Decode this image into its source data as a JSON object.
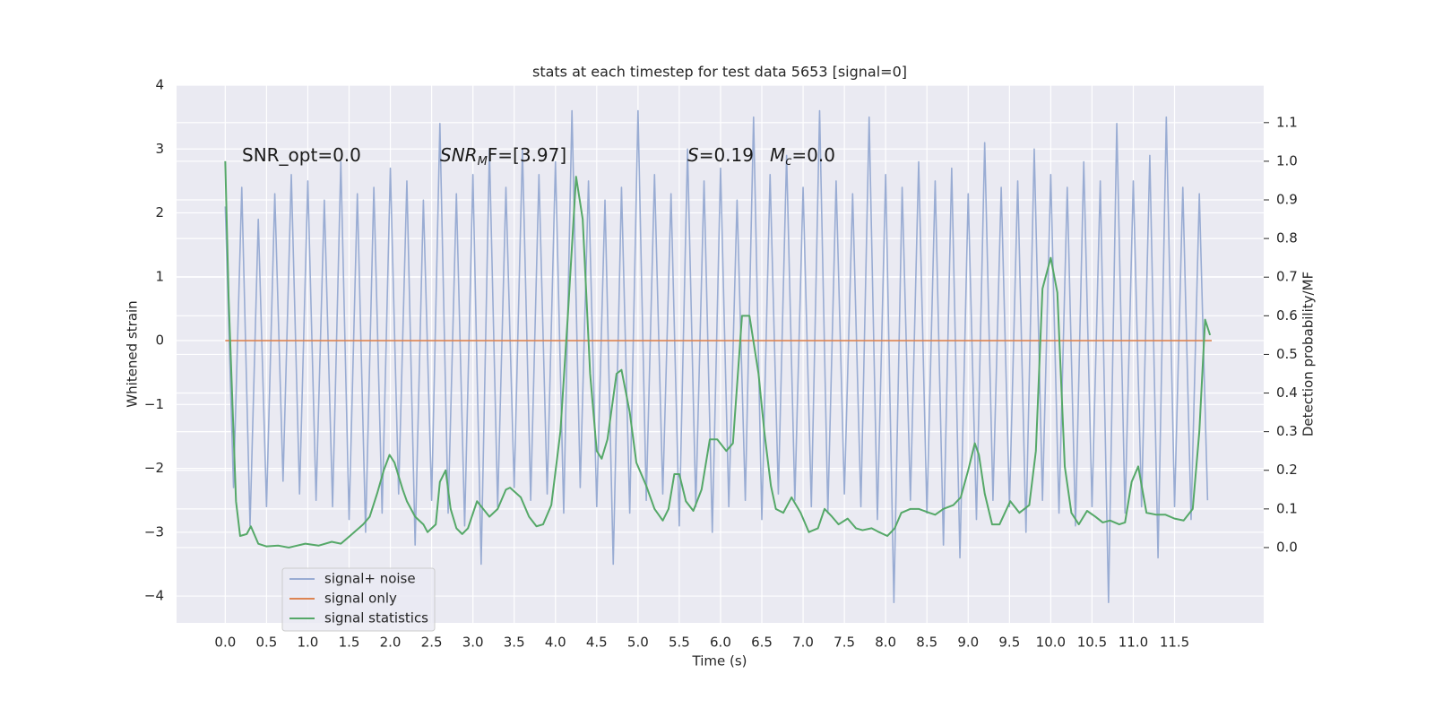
{
  "chart_data": {
    "type": "line",
    "title": "stats at each timestep for test data 5653 [signal=0]",
    "xlabel": "Time (s)",
    "ylabel": "Whitened strain",
    "y2label": "Detection probability/MF",
    "xlim": [
      -0.59,
      12.58
    ],
    "ylim": [
      -4.42,
      4
    ],
    "y2lim": [
      -0.195,
      1.197
    ],
    "xticks": [
      {
        "value": 0,
        "label": "0.0"
      },
      {
        "value": 0.5,
        "label": "0.5"
      },
      {
        "value": 1,
        "label": "1.0"
      },
      {
        "value": 1.5,
        "label": "1.5"
      },
      {
        "value": 2,
        "label": "2.0"
      },
      {
        "value": 2.5,
        "label": "2.5"
      },
      {
        "value": 3,
        "label": "3.0"
      },
      {
        "value": 3.5,
        "label": "3.5"
      },
      {
        "value": 4,
        "label": "4.0"
      },
      {
        "value": 4.5,
        "label": "4.5"
      },
      {
        "value": 5,
        "label": "5.0"
      },
      {
        "value": 5.5,
        "label": "5.5"
      },
      {
        "value": 6,
        "label": "6.0"
      },
      {
        "value": 6.5,
        "label": "6.5"
      },
      {
        "value": 7,
        "label": "7.0"
      },
      {
        "value": 7.5,
        "label": "7.5"
      },
      {
        "value": 8,
        "label": "8.0"
      },
      {
        "value": 8.5,
        "label": "8.5"
      },
      {
        "value": 9,
        "label": "9.0"
      },
      {
        "value": 9.5,
        "label": "9.5"
      },
      {
        "value": 10,
        "label": "10.0"
      },
      {
        "value": 10.5,
        "label": "10.5"
      },
      {
        "value": 11,
        "label": "11.0"
      },
      {
        "value": 11.5,
        "label": "11.5"
      }
    ],
    "yticks": [
      {
        "value": -4,
        "label": "−4"
      },
      {
        "value": -3,
        "label": "−3"
      },
      {
        "value": -2,
        "label": "−2"
      },
      {
        "value": -1,
        "label": "−1"
      },
      0,
      1,
      2,
      3,
      4
    ],
    "y2ticks": [
      {
        "value": 0,
        "label": "0.0"
      },
      {
        "value": 0.1,
        "label": "0.1"
      },
      {
        "value": 0.2,
        "label": "0.2"
      },
      {
        "value": 0.3,
        "label": "0.3"
      },
      {
        "value": 0.4,
        "label": "0.4"
      },
      {
        "value": 0.5,
        "label": "0.5"
      },
      {
        "value": 0.6,
        "label": "0.6"
      },
      {
        "value": 0.7,
        "label": "0.7"
      },
      {
        "value": 0.8,
        "label": "0.8"
      },
      {
        "value": 0.9,
        "label": "0.9"
      },
      {
        "value": 1,
        "label": "1.0"
      },
      {
        "value": 1.1,
        "label": "1.1"
      }
    ],
    "grid": true,
    "legend": "lower left",
    "annotations": [
      {
        "main": "SNR_opt=0.0"
      },
      {
        "main": "SNR",
        "sub": "M",
        "rest": "F=[3.97]"
      },
      {
        "main": "S",
        "rest": "=0.19"
      },
      {
        "main": "M",
        "sub": "c",
        "rest": "=0.0"
      }
    ],
    "series": [
      {
        "name": "signal+ noise",
        "color": "#99acd3",
        "x": [
          0.0,
          0.1,
          0.2,
          0.3,
          0.4,
          0.5,
          0.6,
          0.7,
          0.8,
          0.9,
          1.0,
          1.1,
          1.2,
          1.3,
          1.4,
          1.5,
          1.6,
          1.7,
          1.8,
          1.9,
          2.0,
          2.1,
          2.2,
          2.3,
          2.4,
          2.5,
          2.6,
          2.7,
          2.8,
          2.9,
          3.0,
          3.1,
          3.2,
          3.3,
          3.4,
          3.5,
          3.6,
          3.7,
          3.8,
          3.9,
          4.0,
          4.1,
          4.2,
          4.3,
          4.4,
          4.5,
          4.6,
          4.7,
          4.8,
          4.9,
          5.0,
          5.1,
          5.2,
          5.3,
          5.4,
          5.5,
          5.6,
          5.7,
          5.8,
          5.9,
          6.0,
          6.1,
          6.2,
          6.3,
          6.4,
          6.5,
          6.6,
          6.7,
          6.8,
          6.9,
          7.0,
          7.1,
          7.2,
          7.3,
          7.4,
          7.5,
          7.6,
          7.7,
          7.8,
          7.9,
          8.0,
          8.1,
          8.2,
          8.3,
          8.4,
          8.5,
          8.6,
          8.7,
          8.8,
          8.9,
          9.0,
          9.1,
          9.2,
          9.3,
          9.4,
          9.5,
          9.6,
          9.7,
          9.8,
          9.9,
          10.0,
          10.1,
          10.2,
          10.3,
          10.4,
          10.5,
          10.6,
          10.7,
          10.8,
          10.9,
          11.0,
          11.1,
          11.2,
          11.3,
          11.4,
          11.5,
          11.6,
          11.7,
          11.8,
          11.9
        ],
        "values": [
          2.1,
          -2.3,
          2.4,
          -2.9,
          1.9,
          -2.6,
          2.3,
          -2.2,
          2.6,
          -2.4,
          2.5,
          -2.5,
          2.2,
          -2.6,
          2.8,
          -2.8,
          2.3,
          -3.0,
          2.4,
          -2.7,
          2.7,
          -2.4,
          2.5,
          -3.2,
          2.2,
          -2.5,
          3.4,
          -2.7,
          2.3,
          -2.9,
          2.6,
          -3.5,
          3.0,
          -2.6,
          2.4,
          -2.3,
          3.0,
          -2.5,
          2.6,
          -2.4,
          2.8,
          -2.7,
          3.6,
          -2.3,
          2.5,
          -2.6,
          2.2,
          -3.5,
          2.4,
          -2.7,
          3.6,
          -2.5,
          2.6,
          -2.4,
          2.3,
          -2.9,
          3.0,
          -2.6,
          2.5,
          -3.0,
          2.7,
          -2.6,
          2.2,
          -2.5,
          3.5,
          -2.8,
          2.6,
          -2.4,
          2.9,
          -2.5,
          2.4,
          -2.6,
          3.6,
          -2.7,
          2.5,
          -2.4,
          2.3,
          -2.6,
          3.5,
          -2.8,
          2.6,
          -4.1,
          2.4,
          -2.5,
          2.8,
          -2.7,
          2.5,
          -3.2,
          2.7,
          -3.4,
          2.3,
          -2.8,
          3.1,
          -2.5,
          2.4,
          -2.6,
          2.5,
          -3.0,
          3.0,
          -2.5,
          2.6,
          -2.7,
          2.4,
          -2.9,
          2.8,
          -2.6,
          2.5,
          -4.1,
          3.4,
          -2.7,
          2.5,
          -2.6,
          2.9,
          -3.4,
          3.5,
          -2.6,
          2.4,
          -2.8,
          2.3,
          -2.5
        ]
      },
      {
        "name": "signal only",
        "color": "#dd8452",
        "x": [
          0.0,
          11.95
        ],
        "values": [
          0,
          0
        ]
      },
      {
        "name": "signal statistics",
        "color": "#55a868",
        "axis": "y2",
        "x": [
          0.0,
          0.04,
          0.13,
          0.18,
          0.26,
          0.31,
          0.4,
          0.5,
          0.64,
          0.77,
          0.97,
          1.13,
          1.29,
          1.4,
          1.51,
          1.67,
          1.75,
          1.84,
          1.92,
          1.99,
          2.05,
          2.15,
          2.2,
          2.3,
          2.4,
          2.45,
          2.55,
          2.6,
          2.67,
          2.73,
          2.8,
          2.87,
          2.94,
          3.05,
          3.2,
          3.3,
          3.4,
          3.45,
          3.58,
          3.68,
          3.77,
          3.85,
          3.95,
          4.06,
          4.15,
          4.25,
          4.33,
          4.42,
          4.5,
          4.56,
          4.63,
          4.74,
          4.8,
          4.9,
          4.98,
          5.1,
          5.2,
          5.3,
          5.37,
          5.44,
          5.5,
          5.58,
          5.67,
          5.77,
          5.87,
          5.96,
          6.07,
          6.15,
          6.26,
          6.35,
          6.46,
          6.53,
          6.61,
          6.67,
          6.76,
          6.86,
          6.97,
          7.07,
          7.18,
          7.26,
          7.35,
          7.43,
          7.54,
          7.64,
          7.72,
          7.83,
          7.92,
          8.02,
          8.11,
          8.19,
          8.3,
          8.4,
          8.53,
          8.6,
          8.7,
          8.82,
          8.91,
          9.0,
          9.08,
          9.13,
          9.2,
          9.29,
          9.38,
          9.51,
          9.62,
          9.74,
          9.82,
          9.9,
          10.0,
          10.08,
          10.17,
          10.25,
          10.34,
          10.44,
          10.54,
          10.63,
          10.72,
          10.83,
          10.9,
          10.98,
          11.06,
          11.16,
          11.28,
          11.39,
          11.5,
          11.61,
          11.72,
          11.8,
          11.87,
          11.93
        ],
        "values": [
          1.0,
          0.65,
          0.12,
          0.03,
          0.035,
          0.055,
          0.01,
          0.003,
          0.005,
          0.0,
          0.01,
          0.005,
          0.015,
          0.01,
          0.03,
          0.06,
          0.08,
          0.14,
          0.2,
          0.24,
          0.22,
          0.15,
          0.12,
          0.08,
          0.06,
          0.04,
          0.06,
          0.17,
          0.2,
          0.1,
          0.05,
          0.035,
          0.05,
          0.12,
          0.08,
          0.1,
          0.15,
          0.155,
          0.13,
          0.08,
          0.055,
          0.06,
          0.11,
          0.3,
          0.6,
          0.96,
          0.85,
          0.45,
          0.25,
          0.23,
          0.28,
          0.45,
          0.46,
          0.35,
          0.22,
          0.16,
          0.1,
          0.07,
          0.1,
          0.19,
          0.19,
          0.12,
          0.095,
          0.15,
          0.28,
          0.28,
          0.25,
          0.27,
          0.6,
          0.6,
          0.45,
          0.3,
          0.16,
          0.1,
          0.09,
          0.13,
          0.09,
          0.04,
          0.05,
          0.1,
          0.08,
          0.06,
          0.075,
          0.05,
          0.045,
          0.05,
          0.04,
          0.03,
          0.05,
          0.09,
          0.1,
          0.1,
          0.09,
          0.085,
          0.1,
          0.11,
          0.13,
          0.2,
          0.27,
          0.24,
          0.14,
          0.06,
          0.06,
          0.12,
          0.09,
          0.11,
          0.25,
          0.67,
          0.75,
          0.66,
          0.21,
          0.09,
          0.06,
          0.095,
          0.08,
          0.065,
          0.07,
          0.06,
          0.065,
          0.17,
          0.21,
          0.09,
          0.085,
          0.085,
          0.075,
          0.07,
          0.1,
          0.3,
          0.59,
          0.55
        ]
      }
    ]
  }
}
